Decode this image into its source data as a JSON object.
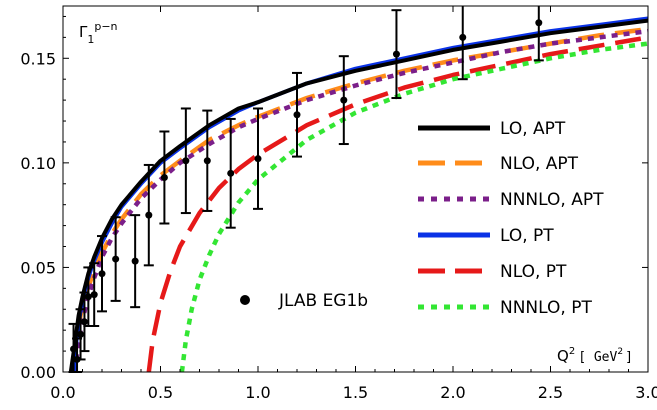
{
  "chart_data": {
    "type": "line",
    "ylabel": {
      "base": "Γ",
      "sub": "1",
      "sup": "p−n"
    },
    "xlabel": {
      "base": "Q",
      "sup": "2",
      "units_open": "[ GeV",
      "units_sup": "2",
      "units_close": "]"
    },
    "xlim": [
      0,
      3.0
    ],
    "ylim": [
      0,
      0.175
    ],
    "x_ticks": [
      "0.0",
      "0.5",
      "1.0",
      "1.5",
      "2.0",
      "2.5",
      "3.0"
    ],
    "y_ticks": [
      "0.00",
      "0.05",
      "0.10",
      "0.15"
    ],
    "grid": false,
    "legend_position": "right",
    "series": [
      {
        "name": "LO, APT",
        "color": "#000000",
        "style": "solid",
        "x": [
          0.04,
          0.06,
          0.08,
          0.1,
          0.13,
          0.16,
          0.2,
          0.25,
          0.3,
          0.4,
          0.5,
          0.6,
          0.75,
          0.9,
          1.0,
          1.25,
          1.5,
          1.75,
          2.0,
          2.25,
          2.5,
          2.75,
          3.0
        ],
        "y": [
          0.0,
          0.013,
          0.027,
          0.036,
          0.047,
          0.055,
          0.064,
          0.073,
          0.08,
          0.091,
          0.101,
          0.108,
          0.118,
          0.126,
          0.129,
          0.138,
          0.144,
          0.149,
          0.154,
          0.158,
          0.162,
          0.165,
          0.168
        ]
      },
      {
        "name": "NLO, APT",
        "color": "#ff8c1a",
        "style": "dashed",
        "x": [
          0.05,
          0.07,
          0.09,
          0.12,
          0.15,
          0.2,
          0.25,
          0.3,
          0.4,
          0.5,
          0.6,
          0.75,
          0.9,
          1.0,
          1.25,
          1.5,
          1.75,
          2.0,
          2.25,
          2.5,
          2.75,
          3.0
        ],
        "y": [
          0.0,
          0.015,
          0.027,
          0.038,
          0.046,
          0.057,
          0.066,
          0.073,
          0.085,
          0.094,
          0.101,
          0.111,
          0.118,
          0.122,
          0.131,
          0.138,
          0.144,
          0.149,
          0.153,
          0.157,
          0.161,
          0.164
        ]
      },
      {
        "name": "NNNLO, APT",
        "color": "#7b1f8a",
        "style": "dotted",
        "x": [
          0.06,
          0.08,
          0.1,
          0.13,
          0.16,
          0.2,
          0.25,
          0.3,
          0.4,
          0.5,
          0.6,
          0.75,
          0.9,
          1.0,
          1.25,
          1.5,
          1.75,
          2.0,
          2.25,
          2.5,
          2.75,
          3.0
        ],
        "y": [
          0.0,
          0.014,
          0.025,
          0.036,
          0.045,
          0.055,
          0.064,
          0.071,
          0.083,
          0.092,
          0.1,
          0.109,
          0.117,
          0.121,
          0.13,
          0.137,
          0.143,
          0.148,
          0.153,
          0.157,
          0.16,
          0.163
        ]
      },
      {
        "name": "LO, PT",
        "color": "#0a32e6",
        "style": "solid",
        "x": [
          0.055,
          0.07,
          0.09,
          0.12,
          0.15,
          0.2,
          0.25,
          0.3,
          0.4,
          0.5,
          0.6,
          0.75,
          0.9,
          1.0,
          1.25,
          1.5,
          1.75,
          2.0,
          2.25,
          2.5,
          2.75,
          3.0
        ],
        "y": [
          0.0,
          0.016,
          0.029,
          0.042,
          0.051,
          0.062,
          0.071,
          0.079,
          0.09,
          0.1,
          0.107,
          0.117,
          0.125,
          0.129,
          0.138,
          0.145,
          0.15,
          0.155,
          0.159,
          0.163,
          0.166,
          0.169
        ]
      },
      {
        "name": "NLO, PT",
        "color": "#e61919",
        "style": "dashed",
        "x": [
          0.44,
          0.46,
          0.5,
          0.55,
          0.6,
          0.7,
          0.8,
          0.9,
          1.0,
          1.25,
          1.5,
          1.75,
          2.0,
          2.25,
          2.5,
          2.75,
          3.0
        ],
        "y": [
          0.0,
          0.015,
          0.033,
          0.048,
          0.06,
          0.076,
          0.088,
          0.097,
          0.104,
          0.118,
          0.128,
          0.136,
          0.142,
          0.147,
          0.152,
          0.156,
          0.16
        ]
      },
      {
        "name": "NNNLO, PT",
        "color": "#33e633",
        "style": "dotted",
        "x": [
          0.61,
          0.63,
          0.66,
          0.7,
          0.75,
          0.8,
          0.9,
          1.0,
          1.25,
          1.5,
          1.75,
          2.0,
          2.25,
          2.5,
          2.75,
          3.0
        ],
        "y": [
          0.0,
          0.015,
          0.03,
          0.044,
          0.056,
          0.066,
          0.081,
          0.092,
          0.111,
          0.124,
          0.133,
          0.14,
          0.145,
          0.15,
          0.154,
          0.157
        ]
      }
    ],
    "data_points": {
      "name": "JLAB EG1b",
      "x": [
        0.054,
        0.072,
        0.09,
        0.11,
        0.13,
        0.16,
        0.2,
        0.27,
        0.37,
        0.44,
        0.52,
        0.63,
        0.74,
        0.86,
        1.0,
        1.2,
        1.44,
        1.71,
        2.05,
        2.44
      ],
      "y": [
        0.011,
        0.006,
        0.018,
        0.024,
        0.036,
        0.037,
        0.047,
        0.054,
        0.053,
        0.075,
        0.093,
        0.101,
        0.101,
        0.095,
        0.102,
        0.123,
        0.13,
        0.152,
        0.16,
        0.167
      ],
      "err": [
        0.012,
        0.01,
        0.012,
        0.014,
        0.014,
        0.015,
        0.018,
        0.02,
        0.022,
        0.024,
        0.022,
        0.025,
        0.024,
        0.026,
        0.024,
        0.02,
        0.021,
        0.021,
        0.02,
        0.018
      ]
    }
  }
}
